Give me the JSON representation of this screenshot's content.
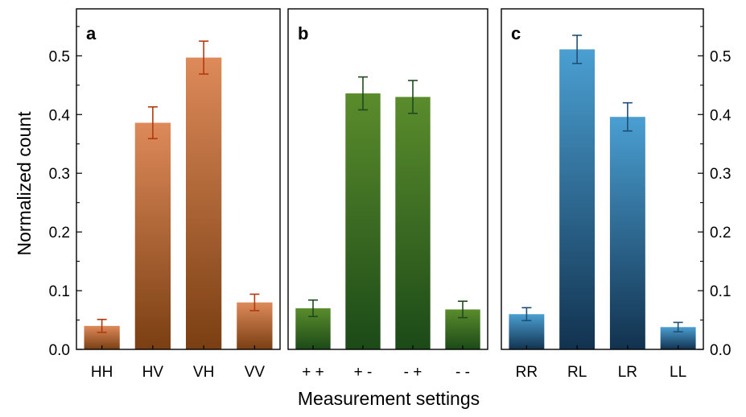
{
  "chart_data": {
    "type": "bar",
    "xlabel": "Measurement settings",
    "ylabel": "Normalized count",
    "ylim": [
      0,
      0.58
    ],
    "yticks": [
      "0.0",
      "0.1",
      "0.2",
      "0.3",
      "0.4",
      "0.5"
    ],
    "grid": false,
    "panels": [
      {
        "label": "a",
        "categories": [
          "HH",
          "HV",
          "VH",
          "VV"
        ],
        "values": [
          0.04,
          0.386,
          0.497,
          0.08
        ],
        "errors": [
          0.011,
          0.027,
          0.028,
          0.014
        ],
        "colors": {
          "top": "#de8a5a",
          "bottom": "#7a3f12",
          "error": "#b23a0e"
        }
      },
      {
        "label": "b",
        "categories": [
          "+ +",
          "+ -",
          "- +",
          "- -"
        ],
        "values": [
          0.07,
          0.436,
          0.43,
          0.068
        ],
        "errors": [
          0.014,
          0.028,
          0.028,
          0.014
        ],
        "colors": {
          "top": "#5a8c2c",
          "bottom": "#1c4a18",
          "error": "#1f4a1f"
        }
      },
      {
        "label": "c",
        "categories": [
          "RR",
          "RL",
          "LR",
          "LL"
        ],
        "values": [
          0.06,
          0.511,
          0.396,
          0.038
        ],
        "errors": [
          0.011,
          0.024,
          0.024,
          0.008
        ],
        "colors": {
          "top": "#4a9fd2",
          "bottom": "#12324f",
          "error": "#1f4f75"
        }
      }
    ]
  }
}
